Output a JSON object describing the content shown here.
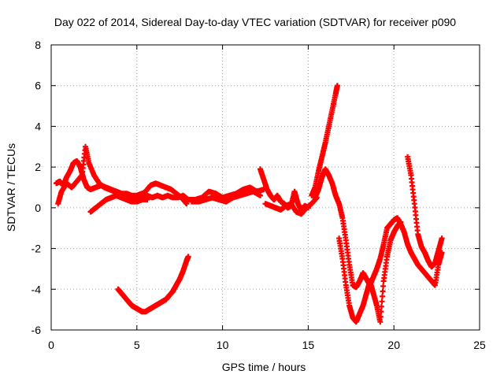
{
  "chart_data": {
    "type": "scatter",
    "title": "Day 022 of 2014, Sidereal Day-to-day VTEC variation (SDTVAR) for receiver p090",
    "xlabel": "GPS time / hours",
    "ylabel": "SDTVAR / TECUs",
    "xlim": [
      0,
      25
    ],
    "ylim": [
      -6,
      8
    ],
    "x_ticks": [
      0,
      5,
      10,
      15,
      20,
      25
    ],
    "y_ticks": [
      -6,
      -4,
      -2,
      0,
      2,
      4,
      6,
      8
    ],
    "x_tick_labels": [
      "0",
      "5",
      "10",
      "15",
      "20",
      "25"
    ],
    "y_tick_labels": [
      "-6",
      "-4",
      "-2",
      "0",
      "2",
      "4",
      "6",
      "8"
    ],
    "grid": true,
    "marker": "+",
    "color": "#ff0000",
    "series": [
      {
        "x": [
          0.3,
          0.5,
          0.7,
          0.9,
          1.1,
          1.3,
          1.5,
          1.7,
          1.9,
          2.1,
          2.3,
          2.6,
          2.9,
          3.2,
          3.5,
          3.8,
          4.1,
          4.4,
          4.7,
          5.0,
          5.3,
          5.6,
          5.9,
          6.2,
          6.5,
          6.8,
          7.1,
          7.4,
          7.7,
          8.0
        ],
        "y": [
          1.2,
          1.3,
          1.1,
          1.5,
          1.8,
          2.2,
          2.3,
          2.0,
          1.4,
          1.0,
          0.9,
          1.0,
          1.1,
          1.0,
          0.9,
          0.8,
          0.7,
          0.7,
          0.6,
          0.6,
          0.7,
          0.6,
          0.5,
          0.6,
          0.5,
          0.6,
          0.5,
          0.5,
          0.6,
          0.4
        ]
      },
      {
        "x": [
          0.4,
          0.6,
          0.9,
          1.2,
          1.5,
          1.8,
          2.0,
          2.2,
          2.5,
          2.8,
          3.1,
          3.4,
          3.7,
          4.0,
          4.3,
          4.6,
          4.9,
          5.2,
          5.5,
          5.8,
          6.1,
          6.4,
          6.7,
          7.0,
          7.3,
          7.6,
          7.9
        ],
        "y": [
          0.2,
          0.8,
          1.2,
          1.0,
          1.3,
          1.6,
          3.0,
          2.2,
          1.6,
          1.2,
          1.0,
          0.9,
          0.8,
          0.7,
          0.6,
          0.5,
          0.5,
          0.6,
          0.8,
          1.1,
          1.2,
          1.1,
          1.0,
          0.9,
          0.7,
          0.5,
          0.2
        ]
      },
      {
        "x": [
          2.3,
          2.6,
          2.9,
          3.2,
          3.5,
          3.8,
          4.1,
          4.4,
          4.7,
          5.0,
          5.3,
          5.6
        ],
        "y": [
          -0.2,
          0.0,
          0.2,
          0.4,
          0.5,
          0.6,
          0.5,
          0.4,
          0.3,
          0.3,
          0.4,
          0.4
        ]
      },
      {
        "x": [
          3.9,
          4.1,
          4.3,
          4.5,
          4.7,
          4.9,
          5.1,
          5.3,
          5.5,
          5.7,
          5.9,
          6.1,
          6.3,
          6.5,
          6.7,
          6.9,
          7.1,
          7.3,
          7.5,
          7.7,
          7.9,
          8.0
        ],
        "y": [
          -4.0,
          -4.2,
          -4.4,
          -4.6,
          -4.8,
          -4.9,
          -5.0,
          -5.1,
          -5.1,
          -5.0,
          -4.9,
          -4.8,
          -4.7,
          -4.6,
          -4.5,
          -4.3,
          -4.1,
          -3.8,
          -3.5,
          -3.1,
          -2.6,
          -2.4
        ]
      },
      {
        "x": [
          8.0,
          8.4,
          8.8,
          9.2,
          9.6,
          10.0,
          10.4,
          10.8,
          11.2,
          11.6,
          12.0,
          12.4
        ],
        "y": [
          0.4,
          0.4,
          0.5,
          0.8,
          0.7,
          0.5,
          0.6,
          0.7,
          0.9,
          1.0,
          0.8,
          0.9
        ]
      },
      {
        "x": [
          8.2,
          8.6,
          9.0,
          9.4,
          9.8,
          10.2,
          10.6,
          11.0,
          11.4,
          11.8,
          12.2
        ],
        "y": [
          0.3,
          0.3,
          0.4,
          0.5,
          0.4,
          0.3,
          0.5,
          0.6,
          0.7,
          0.8,
          0.6
        ]
      },
      {
        "x": [
          12.2,
          12.4,
          12.6,
          12.8,
          13.0,
          13.2,
          13.4,
          13.6,
          13.8,
          14.0,
          14.2,
          14.4,
          14.6,
          14.8,
          15.0
        ],
        "y": [
          1.9,
          1.4,
          0.9,
          0.6,
          0.4,
          0.6,
          0.3,
          0.2,
          0.0,
          0.1,
          0.8,
          0.2,
          -0.1,
          0.1,
          0.0
        ]
      },
      {
        "x": [
          12.5,
          12.8,
          13.1,
          13.4,
          13.7,
          14.0,
          14.3,
          14.6,
          14.9,
          15.2,
          15.5
        ],
        "y": [
          0.2,
          0.1,
          0.0,
          -0.1,
          0.1,
          0.2,
          -0.2,
          -0.3,
          0.0,
          0.2,
          0.5
        ]
      },
      {
        "x": [
          15.2,
          15.4,
          15.6,
          15.8,
          16.0,
          16.2,
          16.4,
          16.6,
          16.7
        ],
        "y": [
          0.6,
          1.0,
          1.8,
          2.5,
          3.2,
          4.0,
          4.8,
          5.6,
          6.0
        ]
      },
      {
        "x": [
          15.4,
          15.6,
          15.8,
          16.0,
          16.2,
          16.4,
          16.6,
          16.8,
          17.0,
          17.2,
          17.4,
          17.6,
          17.8,
          18.0,
          18.2,
          18.4,
          18.6,
          18.8,
          19.0,
          19.2,
          19.4,
          19.6,
          19.8,
          20.0,
          20.2,
          20.4,
          20.6,
          20.8,
          21.0,
          21.2,
          21.4,
          21.6,
          21.8,
          22.0,
          22.2,
          22.4,
          22.6,
          22.8
        ],
        "y": [
          0.5,
          0.9,
          1.5,
          1.9,
          1.6,
          1.2,
          0.6,
          0.2,
          -0.5,
          -1.6,
          -2.8,
          -3.8,
          -3.9,
          -3.6,
          -3.2,
          -3.5,
          -3.8,
          -3.4,
          -3.0,
          -2.5,
          -1.8,
          -1.0,
          -0.8,
          -0.6,
          -0.5,
          -0.8,
          -1.2,
          -1.8,
          -2.2,
          -2.5,
          -2.8,
          -3.0,
          -3.2,
          -3.4,
          -3.6,
          -3.8,
          -2.8,
          -2.2
        ]
      },
      {
        "x": [
          16.8,
          17.0,
          17.2,
          17.4,
          17.6,
          17.8,
          18.0,
          18.2,
          18.4,
          18.6,
          18.8,
          19.0,
          19.2,
          19.4,
          19.6,
          19.8,
          20.0,
          20.2,
          20.4
        ],
        "y": [
          -1.5,
          -2.5,
          -3.8,
          -4.8,
          -5.4,
          -5.6,
          -5.2,
          -4.8,
          -4.2,
          -3.6,
          -4.2,
          -4.8,
          -5.6,
          -3.6,
          -2.4,
          -1.6,
          -1.2,
          -0.9,
          -0.7
        ]
      },
      {
        "x": [
          20.8,
          21.0,
          21.2,
          21.4,
          21.6,
          21.8,
          22.0,
          22.2,
          22.4,
          22.6,
          22.8
        ],
        "y": [
          2.5,
          1.6,
          0.2,
          -1.3,
          -1.9,
          -2.2,
          -2.6,
          -2.9,
          -2.7,
          -2.1,
          -1.5
        ]
      }
    ]
  }
}
